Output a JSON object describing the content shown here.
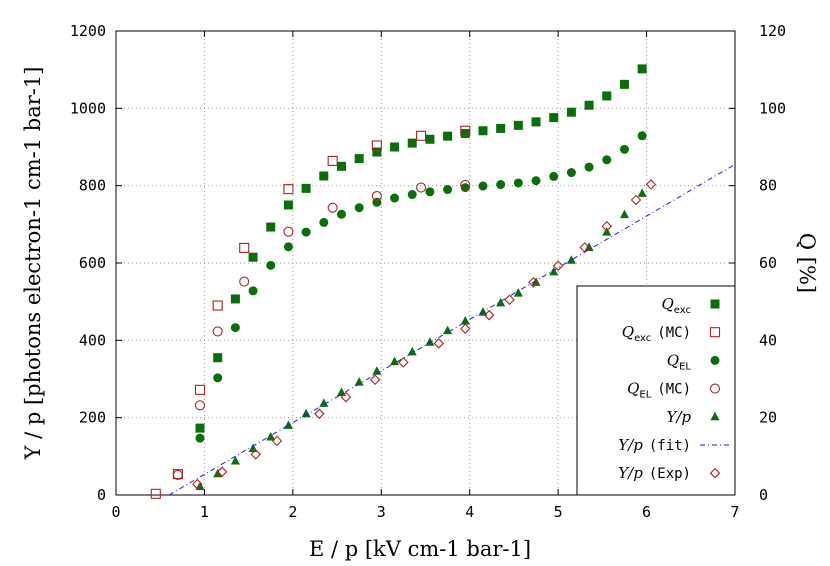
{
  "chart_data": {
    "type": "scatter",
    "title": "",
    "xlabel": "E / p [kV cm-1 bar-1]",
    "ylabel": "Y / p [photons electron-1 cm-1 bar-1]",
    "y2label": "Q [%]",
    "xlim": [
      0,
      7
    ],
    "ylim": [
      0,
      1200
    ],
    "y2lim": [
      0,
      120
    ],
    "x_ticks": [
      "0",
      "1",
      "2",
      "3",
      "4",
      "5",
      "6",
      "7"
    ],
    "y_ticks": [
      "0",
      "200",
      "400",
      "600",
      "800",
      "1000",
      "1200"
    ],
    "y2_ticks": [
      "0",
      "20",
      "40",
      "60",
      "80",
      "100",
      "120"
    ],
    "grid": true,
    "legend_position": "bottom-right",
    "series": [
      {
        "name": "Q_exc",
        "legend_main": "Q",
        "legend_sub": "exc",
        "legend_suffix": "",
        "axis": "y2",
        "marker": "filled-square",
        "color": "#0a6e0a",
        "x": [
          0.95,
          1.15,
          1.35,
          1.55,
          1.75,
          1.95,
          2.15,
          2.35,
          2.55,
          2.75,
          2.95,
          3.15,
          3.35,
          3.55,
          3.75,
          3.95,
          4.15,
          4.35,
          4.55,
          4.75,
          4.95,
          5.15,
          5.35,
          5.55,
          5.75,
          5.95
        ],
        "y": [
          17.3,
          35.5,
          50.7,
          61.5,
          69.3,
          75.0,
          79.3,
          82.5,
          85.0,
          87.0,
          88.7,
          90.0,
          91.0,
          92.0,
          92.8,
          93.5,
          94.2,
          94.8,
          95.6,
          96.5,
          97.6,
          99.0,
          100.8,
          103.2,
          106.2,
          110.2
        ]
      },
      {
        "name": "Q_exc (MC)",
        "legend_main": "Q",
        "legend_sub": "exc",
        "legend_suffix": "(MC)",
        "axis": "y2",
        "marker": "open-square",
        "color": "#b22222",
        "x": [
          0.45,
          0.7,
          0.95,
          1.15,
          1.45,
          1.95,
          2.45,
          2.95,
          3.45,
          3.95
        ],
        "y": [
          0.3,
          5.4,
          27.2,
          49.0,
          63.9,
          79.1,
          86.4,
          90.4,
          92.9,
          94.2
        ]
      },
      {
        "name": "Q_EL",
        "legend_main": "Q",
        "legend_sub": "EL",
        "legend_suffix": "",
        "axis": "y2",
        "marker": "filled-circle",
        "color": "#0a6e0a",
        "x": [
          0.95,
          1.15,
          1.35,
          1.55,
          1.75,
          1.95,
          2.15,
          2.35,
          2.55,
          2.75,
          2.95,
          3.15,
          3.35,
          3.55,
          3.75,
          3.95,
          4.15,
          4.35,
          4.55,
          4.75,
          4.95,
          5.15,
          5.35,
          5.55,
          5.75,
          5.95
        ],
        "y": [
          14.7,
          30.3,
          43.3,
          52.8,
          59.4,
          64.2,
          68.0,
          70.5,
          72.6,
          74.3,
          75.7,
          76.8,
          77.7,
          78.4,
          79.0,
          79.5,
          79.9,
          80.3,
          80.7,
          81.3,
          82.4,
          83.4,
          84.8,
          86.7,
          89.4,
          92.9
        ]
      },
      {
        "name": "Q_EL (MC)",
        "legend_main": "Q",
        "legend_sub": "EL",
        "legend_suffix": "(MC)",
        "axis": "y2",
        "marker": "open-circle",
        "color": "#b22222",
        "x": [
          0.7,
          0.95,
          1.15,
          1.45,
          1.95,
          2.45,
          2.95,
          3.45,
          3.95
        ],
        "y": [
          5.2,
          23.2,
          42.3,
          55.2,
          68.1,
          74.3,
          77.3,
          79.5,
          80.2
        ]
      },
      {
        "name": "Y/p",
        "legend_main": "Y/p",
        "legend_sub": "",
        "legend_suffix": "",
        "axis": "y",
        "marker": "filled-triangle",
        "color": "#0a6e0a",
        "x": [
          0.95,
          1.15,
          1.35,
          1.55,
          1.75,
          1.95,
          2.15,
          2.35,
          2.55,
          2.75,
          2.95,
          3.15,
          3.35,
          3.55,
          3.75,
          3.95,
          4.15,
          4.35,
          4.55,
          4.75,
          4.95,
          5.15,
          5.35,
          5.55,
          5.75,
          5.95
        ],
        "y": [
          22,
          55,
          88,
          120,
          150,
          180,
          210,
          237,
          265,
          292,
          320,
          345,
          370,
          395,
          425,
          450,
          473,
          497,
          522,
          550,
          577,
          607,
          640,
          680,
          725,
          780
        ]
      },
      {
        "name": "Y/p (fit)",
        "legend_main": "Y/p",
        "legend_sub": "",
        "legend_suffix": "(fit)",
        "axis": "y",
        "marker": "dash-dot-line",
        "color": "#1a1aff",
        "x": [
          0.6,
          7.0
        ],
        "y": [
          0,
          855
        ]
      },
      {
        "name": "Y/p (Exp)",
        "legend_main": "Y/p",
        "legend_sub": "",
        "legend_suffix": "(Exp)",
        "axis": "y",
        "marker": "open-diamond",
        "color": "#b22222",
        "x": [
          0.92,
          1.2,
          1.58,
          1.82,
          2.3,
          2.6,
          2.93,
          3.25,
          3.65,
          3.95,
          4.22,
          4.45,
          4.72,
          5.0,
          5.3,
          5.55,
          5.88,
          6.05
        ],
        "y": [
          28,
          60,
          105,
          140,
          210,
          253,
          298,
          343,
          392,
          430,
          465,
          505,
          550,
          593,
          640,
          695,
          763,
          803
        ]
      }
    ]
  }
}
